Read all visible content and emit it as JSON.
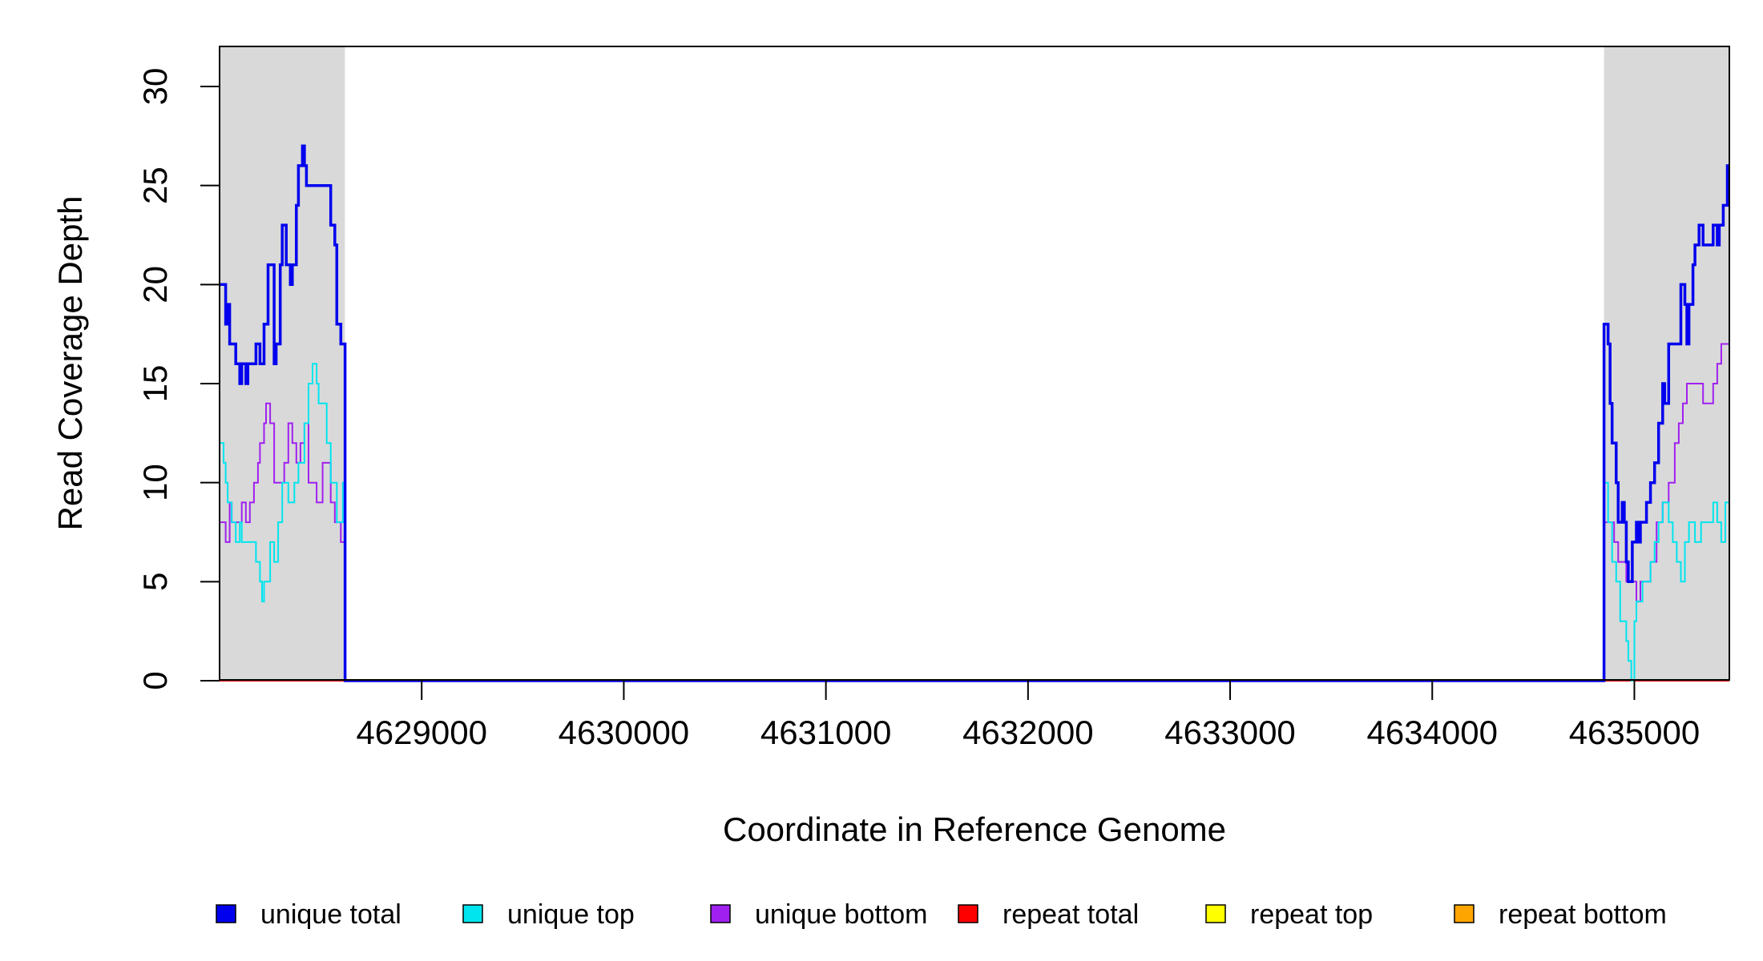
{
  "chart_data": {
    "type": "line",
    "title": "",
    "xlabel": "Coordinate in Reference Genome",
    "ylabel": "Read Coverage Depth",
    "xlim": [
      4628000,
      4635470
    ],
    "ylim": [
      0,
      32
    ],
    "xticks": [
      4629000,
      4630000,
      4631000,
      4632000,
      4633000,
      4634000,
      4635000
    ],
    "yticks": [
      0,
      5,
      10,
      15,
      20,
      25,
      30
    ],
    "grid": false,
    "shaded_regions": [
      {
        "x0": 4628000,
        "x1": 4628620,
        "color": "#d9d9d9"
      },
      {
        "x0": 4634850,
        "x1": 4635470,
        "color": "#d9d9d9"
      }
    ],
    "legend_position": "bottom",
    "series": [
      {
        "name": "unique total",
        "color": "#0000ee",
        "width": 3.5,
        "points": [
          [
            4628000,
            20
          ],
          [
            4628020,
            20
          ],
          [
            4628030,
            18
          ],
          [
            4628040,
            19
          ],
          [
            4628050,
            17
          ],
          [
            4628070,
            17
          ],
          [
            4628080,
            16
          ],
          [
            4628100,
            15
          ],
          [
            4628110,
            16
          ],
          [
            4628130,
            15
          ],
          [
            4628140,
            16
          ],
          [
            4628170,
            16
          ],
          [
            4628180,
            17
          ],
          [
            4628200,
            16
          ],
          [
            4628220,
            18
          ],
          [
            4628240,
            21
          ],
          [
            4628270,
            16
          ],
          [
            4628280,
            17
          ],
          [
            4628300,
            21
          ],
          [
            4628310,
            23
          ],
          [
            4628330,
            21
          ],
          [
            4628350,
            20
          ],
          [
            4628360,
            21
          ],
          [
            4628380,
            24
          ],
          [
            4628390,
            26
          ],
          [
            4628410,
            27
          ],
          [
            4628420,
            26
          ],
          [
            4628430,
            25
          ],
          [
            4628510,
            25
          ],
          [
            4628550,
            23
          ],
          [
            4628570,
            22
          ],
          [
            4628580,
            18
          ],
          [
            4628600,
            17
          ],
          [
            4628620,
            17
          ],
          [
            4628621,
            0
          ],
          [
            4634849,
            0
          ],
          [
            4634850,
            18
          ],
          [
            4634870,
            17
          ],
          [
            4634880,
            14
          ],
          [
            4634890,
            12
          ],
          [
            4634910,
            10
          ],
          [
            4634920,
            8
          ],
          [
            4634940,
            9
          ],
          [
            4634950,
            8
          ],
          [
            4634960,
            6
          ],
          [
            4634970,
            5
          ],
          [
            4634990,
            7
          ],
          [
            4635010,
            8
          ],
          [
            4635020,
            7
          ],
          [
            4635030,
            8
          ],
          [
            4635060,
            9
          ],
          [
            4635080,
            10
          ],
          [
            4635100,
            11
          ],
          [
            4635120,
            13
          ],
          [
            4635140,
            15
          ],
          [
            4635150,
            14
          ],
          [
            4635170,
            17
          ],
          [
            4635200,
            17
          ],
          [
            4635230,
            20
          ],
          [
            4635250,
            19
          ],
          [
            4635260,
            17
          ],
          [
            4635270,
            19
          ],
          [
            4635290,
            21
          ],
          [
            4635300,
            22
          ],
          [
            4635320,
            23
          ],
          [
            4635340,
            22
          ],
          [
            4635370,
            22
          ],
          [
            4635390,
            23
          ],
          [
            4635410,
            22
          ],
          [
            4635420,
            23
          ],
          [
            4635440,
            24
          ],
          [
            4635460,
            26
          ],
          [
            4635470,
            26
          ]
        ]
      },
      {
        "name": "unique top",
        "color": "#00e5ee",
        "width": 2,
        "points": [
          [
            4628000,
            12
          ],
          [
            4628020,
            11
          ],
          [
            4628030,
            10
          ],
          [
            4628040,
            9
          ],
          [
            4628060,
            8
          ],
          [
            4628080,
            7
          ],
          [
            4628100,
            8
          ],
          [
            4628110,
            7
          ],
          [
            4628180,
            6
          ],
          [
            4628200,
            5
          ],
          [
            4628210,
            4
          ],
          [
            4628220,
            5
          ],
          [
            4628250,
            7
          ],
          [
            4628270,
            6
          ],
          [
            4628290,
            8
          ],
          [
            4628310,
            10
          ],
          [
            4628340,
            9
          ],
          [
            4628370,
            10
          ],
          [
            4628390,
            11
          ],
          [
            4628420,
            13
          ],
          [
            4628440,
            15
          ],
          [
            4628460,
            16
          ],
          [
            4628480,
            15
          ],
          [
            4628490,
            14
          ],
          [
            4628530,
            12
          ],
          [
            4628550,
            10
          ],
          [
            4628580,
            8
          ],
          [
            4628610,
            10
          ],
          [
            4628620,
            10
          ],
          [
            4628621,
            0
          ],
          [
            4634849,
            0
          ],
          [
            4634850,
            10
          ],
          [
            4634870,
            8
          ],
          [
            4634890,
            6
          ],
          [
            4634910,
            5
          ],
          [
            4634930,
            3
          ],
          [
            4634960,
            2
          ],
          [
            4634970,
            1
          ],
          [
            4634985,
            0
          ],
          [
            4635000,
            3
          ],
          [
            4635010,
            4
          ],
          [
            4635020,
            4
          ],
          [
            4635040,
            5
          ],
          [
            4635060,
            5
          ],
          [
            4635080,
            6
          ],
          [
            4635100,
            7
          ],
          [
            4635120,
            8
          ],
          [
            4635140,
            9
          ],
          [
            4635170,
            8
          ],
          [
            4635190,
            7
          ],
          [
            4635210,
            6
          ],
          [
            4635230,
            5
          ],
          [
            4635250,
            7
          ],
          [
            4635270,
            8
          ],
          [
            4635300,
            7
          ],
          [
            4635330,
            8
          ],
          [
            4635360,
            8
          ],
          [
            4635390,
            9
          ],
          [
            4635410,
            8
          ],
          [
            4635430,
            7
          ],
          [
            4635450,
            9
          ],
          [
            4635470,
            9
          ]
        ]
      },
      {
        "name": "unique bottom",
        "color": "#a020f0",
        "width": 2,
        "points": [
          [
            4628000,
            8
          ],
          [
            4628020,
            8
          ],
          [
            4628030,
            7
          ],
          [
            4628050,
            9
          ],
          [
            4628060,
            8
          ],
          [
            4628110,
            9
          ],
          [
            4628130,
            8
          ],
          [
            4628150,
            9
          ],
          [
            4628170,
            10
          ],
          [
            4628190,
            11
          ],
          [
            4628200,
            12
          ],
          [
            4628220,
            13
          ],
          [
            4628230,
            14
          ],
          [
            4628250,
            13
          ],
          [
            4628270,
            10
          ],
          [
            4628320,
            11
          ],
          [
            4628340,
            13
          ],
          [
            4628360,
            12
          ],
          [
            4628380,
            11
          ],
          [
            4628400,
            12
          ],
          [
            4628420,
            13
          ],
          [
            4628440,
            10
          ],
          [
            4628460,
            10
          ],
          [
            4628480,
            9
          ],
          [
            4628510,
            11
          ],
          [
            4628550,
            9
          ],
          [
            4628570,
            8
          ],
          [
            4628600,
            7
          ],
          [
            4628620,
            7
          ],
          [
            4628621,
            0
          ],
          [
            4634849,
            0
          ],
          [
            4634850,
            8
          ],
          [
            4634870,
            8
          ],
          [
            4634880,
            8
          ],
          [
            4634900,
            7
          ],
          [
            4634920,
            6
          ],
          [
            4634950,
            6
          ],
          [
            4634960,
            5
          ],
          [
            4634990,
            5
          ],
          [
            4635010,
            4
          ],
          [
            4635030,
            5
          ],
          [
            4635050,
            5
          ],
          [
            4635080,
            6
          ],
          [
            4635110,
            8
          ],
          [
            4635140,
            9
          ],
          [
            4635170,
            10
          ],
          [
            4635200,
            12
          ],
          [
            4635220,
            13
          ],
          [
            4635240,
            14
          ],
          [
            4635260,
            15
          ],
          [
            4635290,
            15
          ],
          [
            4635320,
            15
          ],
          [
            4635340,
            14
          ],
          [
            4635370,
            14
          ],
          [
            4635390,
            15
          ],
          [
            4635410,
            16
          ],
          [
            4635430,
            17
          ],
          [
            4635450,
            17
          ],
          [
            4635470,
            17
          ]
        ]
      },
      {
        "name": "repeat total",
        "color": "#ff0000",
        "width": 2,
        "points": [
          [
            4628000,
            0
          ],
          [
            4635470,
            0
          ]
        ]
      },
      {
        "name": "repeat top",
        "color": "#ffff00",
        "width": 2,
        "points": [
          [
            4628000,
            0
          ],
          [
            4635470,
            0
          ]
        ]
      },
      {
        "name": "repeat bottom",
        "color": "#ffa500",
        "width": 2,
        "points": [
          [
            4628000,
            0
          ],
          [
            4635470,
            0
          ]
        ]
      }
    ]
  }
}
